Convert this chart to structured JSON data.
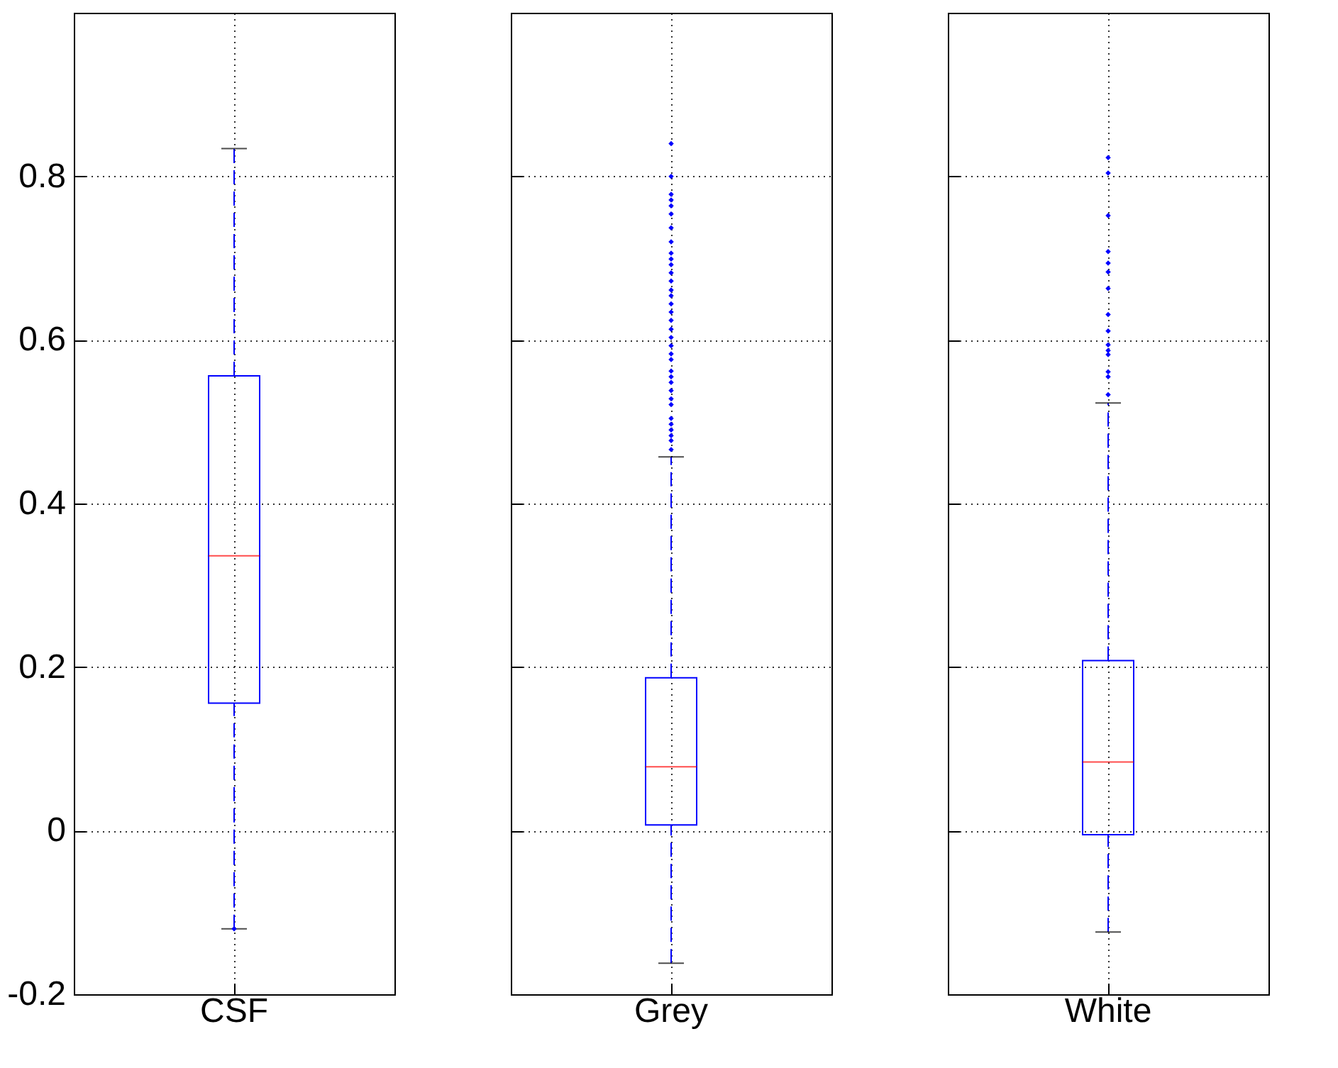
{
  "chart_data": [
    {
      "type": "box",
      "categories": [
        "CSF"
      ],
      "ylim": [
        -0.2,
        1.0
      ],
      "yticks": [
        -0.2,
        0,
        0.2,
        0.4,
        0.6,
        0.8
      ],
      "grid": true,
      "boxes": [
        {
          "low": -0.12,
          "q1": 0.156,
          "median": 0.336,
          "q3": 0.556,
          "high": 0.834,
          "outliers": [
            -0.12
          ]
        }
      ]
    },
    {
      "type": "box",
      "categories": [
        "Grey"
      ],
      "ylim": [
        -0.2,
        1.0
      ],
      "yticks": [
        -0.2,
        0,
        0.2,
        0.4,
        0.6,
        0.8
      ],
      "grid": true,
      "tick_labels": "x",
      "boxes": [
        {
          "low": -0.162,
          "q1": 0.007,
          "median": 0.078,
          "q3": 0.187,
          "high": 0.457,
          "outliers": [
            0.84,
            0.8,
            0.778,
            0.771,
            0.764,
            0.754,
            0.737,
            0.72,
            0.706,
            0.699,
            0.692,
            0.682,
            0.672,
            0.661,
            0.654,
            0.644,
            0.634,
            0.624,
            0.613,
            0.603,
            0.593,
            0.583,
            0.576,
            0.562,
            0.555,
            0.548,
            0.538,
            0.528,
            0.521,
            0.504,
            0.497,
            0.49,
            0.483,
            0.477,
            0.466
          ]
        }
      ]
    },
    {
      "type": "box",
      "categories": [
        "White"
      ],
      "ylim": [
        -0.2,
        1.0
      ],
      "yticks": [
        -0.2,
        0,
        0.2,
        0.4,
        0.6,
        0.8
      ],
      "grid": true,
      "tick_labels": "x",
      "boxes": [
        {
          "low": -0.124,
          "q1": -0.005,
          "median": 0.084,
          "q3": 0.208,
          "high": 0.523,
          "outliers": [
            0.823,
            0.804,
            0.752,
            0.708,
            0.694,
            0.683,
            0.663,
            0.631,
            0.611,
            0.594,
            0.587,
            0.582,
            0.561,
            0.555,
            0.533
          ]
        }
      ]
    }
  ]
}
